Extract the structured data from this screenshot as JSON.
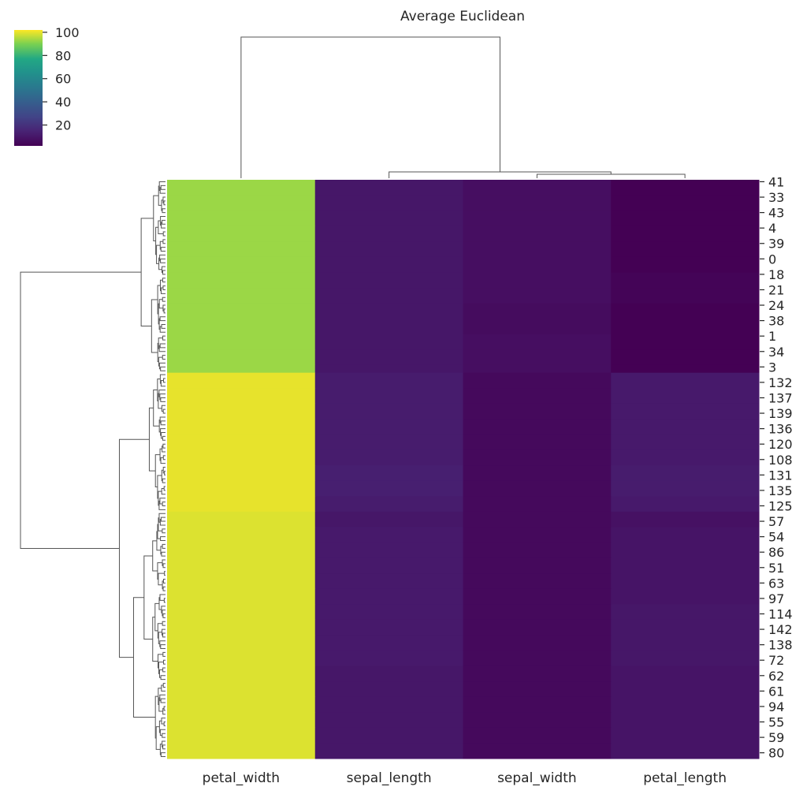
{
  "chart_data": {
    "type": "heatmap",
    "title": "Average Euclidean",
    "columns": [
      "petal_width",
      "sepal_length",
      "sepal_width",
      "petal_length"
    ],
    "colormap": "viridis",
    "colorbar": {
      "range": [
        2,
        102
      ],
      "ticks": [
        20,
        40,
        60,
        80,
        100
      ]
    },
    "rows": [
      {
        "label": "41",
        "values": [
          93,
          10,
          7,
          2
        ]
      },
      {
        "label": "33",
        "values": [
          93,
          10,
          7,
          2
        ]
      },
      {
        "label": "43",
        "values": [
          93,
          10,
          7,
          2
        ]
      },
      {
        "label": "4",
        "values": [
          93,
          10,
          7,
          2
        ]
      },
      {
        "label": "39",
        "values": [
          93,
          10,
          7,
          2
        ]
      },
      {
        "label": "0",
        "values": [
          93,
          10,
          7,
          2
        ]
      },
      {
        "label": "18",
        "values": [
          93,
          10,
          7,
          3
        ]
      },
      {
        "label": "21",
        "values": [
          93,
          10,
          7,
          3
        ]
      },
      {
        "label": "24",
        "values": [
          93,
          10,
          6,
          2
        ]
      },
      {
        "label": "38",
        "values": [
          93,
          10,
          6,
          2
        ]
      },
      {
        "label": "1",
        "values": [
          93,
          10,
          7,
          2
        ]
      },
      {
        "label": "34",
        "values": [
          93,
          10,
          7,
          2
        ]
      },
      {
        "label": "3",
        "values": [
          93,
          10,
          7,
          2
        ]
      },
      {
        "label": "132",
        "values": [
          100,
          12,
          5,
          11
        ]
      },
      {
        "label": "137",
        "values": [
          100,
          12,
          5,
          11
        ]
      },
      {
        "label": "139",
        "values": [
          100,
          12,
          5,
          11
        ]
      },
      {
        "label": "136",
        "values": [
          100,
          12,
          5,
          11
        ]
      },
      {
        "label": "120",
        "values": [
          100,
          12,
          5,
          11
        ]
      },
      {
        "label": "108",
        "values": [
          100,
          12,
          5,
          11
        ]
      },
      {
        "label": "131",
        "values": [
          100,
          13,
          5,
          12
        ]
      },
      {
        "label": "135",
        "values": [
          100,
          13,
          5,
          12
        ]
      },
      {
        "label": "125",
        "values": [
          100,
          12,
          5,
          11
        ]
      },
      {
        "label": "57",
        "values": [
          99,
          10,
          5,
          8
        ]
      },
      {
        "label": "54",
        "values": [
          99,
          11,
          5,
          9
        ]
      },
      {
        "label": "86",
        "values": [
          99,
          11,
          5,
          9
        ]
      },
      {
        "label": "51",
        "values": [
          99,
          11,
          5,
          9
        ]
      },
      {
        "label": "63",
        "values": [
          99,
          11,
          5,
          9
        ]
      },
      {
        "label": "97",
        "values": [
          99,
          11,
          5,
          9
        ]
      },
      {
        "label": "114",
        "values": [
          99,
          11,
          5,
          10
        ]
      },
      {
        "label": "142",
        "values": [
          99,
          11,
          5,
          10
        ]
      },
      {
        "label": "138",
        "values": [
          99,
          11,
          5,
          10
        ]
      },
      {
        "label": "72",
        "values": [
          99,
          11,
          5,
          10
        ]
      },
      {
        "label": "62",
        "values": [
          99,
          10,
          5,
          9
        ]
      },
      {
        "label": "61",
        "values": [
          99,
          10,
          5,
          9
        ]
      },
      {
        "label": "94",
        "values": [
          99,
          10,
          5,
          9
        ]
      },
      {
        "label": "55",
        "values": [
          99,
          10,
          5,
          9
        ]
      },
      {
        "label": "59",
        "values": [
          99,
          10,
          5,
          9
        ]
      },
      {
        "label": "80",
        "values": [
          99,
          10,
          5,
          9
        ]
      }
    ]
  }
}
